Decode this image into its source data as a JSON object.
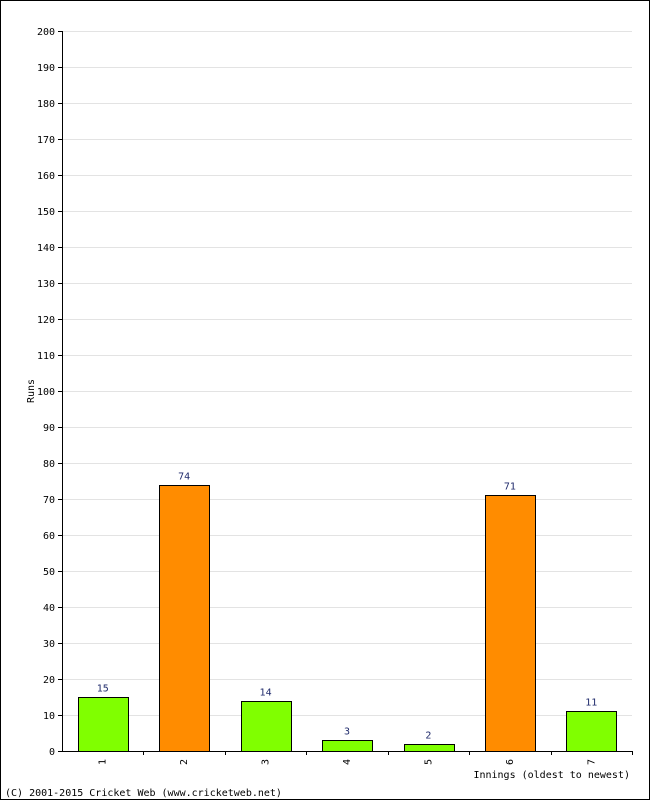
{
  "chart_data": {
    "type": "bar",
    "categories": [
      "1",
      "2",
      "3",
      "4",
      "5",
      "6",
      "7"
    ],
    "values": [
      15,
      74,
      14,
      3,
      2,
      71,
      11
    ],
    "bar_colors": [
      "#80ff00",
      "#ff8c00",
      "#80ff00",
      "#80ff00",
      "#80ff00",
      "#ff8c00",
      "#80ff00"
    ],
    "ylabel": "Runs",
    "xlabel": "Innings (oldest to newest)",
    "ylim": [
      0,
      200
    ],
    "ytick_step": 10,
    "grid": true
  },
  "footer": {
    "copyright": "(C) 2001-2015 Cricket Web (www.cricketweb.net)"
  }
}
